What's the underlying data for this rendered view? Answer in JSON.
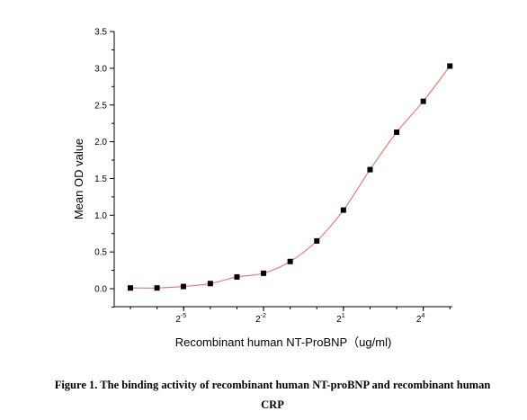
{
  "chart_data": {
    "type": "scatter",
    "xlabel": "Recombinant human  NT-ProBNP（ug/ml)",
    "ylabel": "Mean OD value",
    "x_scale": "log2",
    "ylim": [
      -0.25,
      3.5
    ],
    "yticks": [
      "0.0",
      "0.5",
      "1.0",
      "1.5",
      "2.0",
      "2.5",
      "3.0",
      "3.5"
    ],
    "xticks": [
      {
        "base": "2",
        "exp": "-5",
        "value": 0.03125
      },
      {
        "base": "2",
        "exp": "-2",
        "value": 0.25
      },
      {
        "base": "2",
        "exp": "1",
        "value": 2
      },
      {
        "base": "2",
        "exp": "4",
        "value": 16
      }
    ],
    "series": [
      {
        "marker": "square",
        "color": "#000000",
        "fit_color": "#e8736f",
        "points": [
          {
            "x": 0.0078,
            "y": 0.01
          },
          {
            "x": 0.0156,
            "y": 0.01
          },
          {
            "x": 0.031,
            "y": 0.03
          },
          {
            "x": 0.0625,
            "y": 0.07
          },
          {
            "x": 0.125,
            "y": 0.16
          },
          {
            "x": 0.25,
            "y": 0.21
          },
          {
            "x": 0.5,
            "y": 0.37
          },
          {
            "x": 1.0,
            "y": 0.65
          },
          {
            "x": 2.0,
            "y": 1.07
          },
          {
            "x": 4.0,
            "y": 1.62
          },
          {
            "x": 8.0,
            "y": 2.13
          },
          {
            "x": 16.0,
            "y": 2.55
          },
          {
            "x": 32.0,
            "y": 3.03
          }
        ]
      }
    ]
  },
  "caption": {
    "line1": "Figure 1. The binding activity of recombinant human NT-proBNP and recombinant human",
    "line2": "CRP"
  }
}
